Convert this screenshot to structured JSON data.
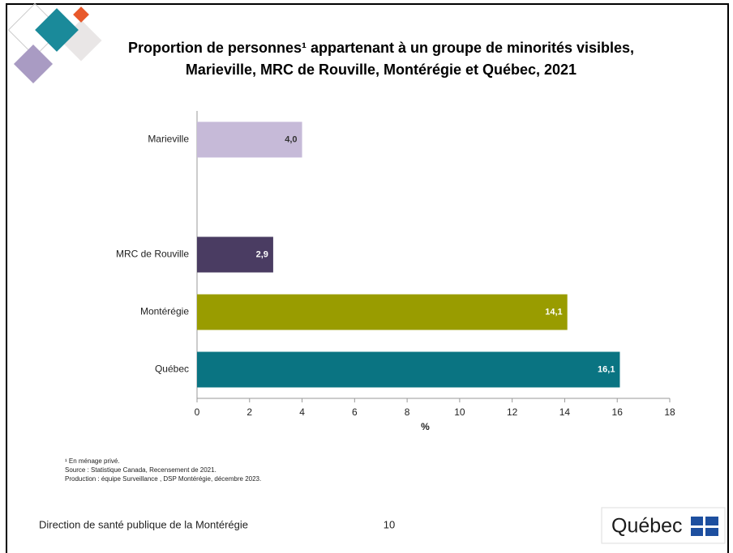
{
  "chart_data": {
    "type": "hbar",
    "title": [
      "Proportion de personnes¹ appartenant à un groupe de minorités visibles,",
      "Marieville, MRC de Rouville, Montérégie et Québec, 2021"
    ],
    "categories": [
      "Marieville",
      null,
      "MRC de Rouville",
      "Montérégie",
      "Québec"
    ],
    "values": [
      4.0,
      null,
      2.9,
      14.1,
      16.1
    ],
    "value_labels": [
      "4,0",
      null,
      "2,9",
      "14,1",
      "16,1"
    ],
    "colors": [
      "#c6bad8",
      null,
      "#4a3c62",
      "#999c00",
      "#0a7482"
    ],
    "x_label": "%",
    "xlim": [
      0,
      18
    ],
    "xticks": [
      0,
      2,
      4,
      6,
      8,
      10,
      12,
      14,
      16,
      18
    ],
    "grid": false,
    "notes": [
      "¹ En ménage privé.",
      "Source : Statistique Canada, Recensement de 2021.",
      "Production : équipe Surveillance , DSP Montérégie, décembre 2023."
    ]
  },
  "slide": {
    "footer": "Direction de santé publique de la Montérégie",
    "page": "10",
    "logo": "Québec"
  }
}
